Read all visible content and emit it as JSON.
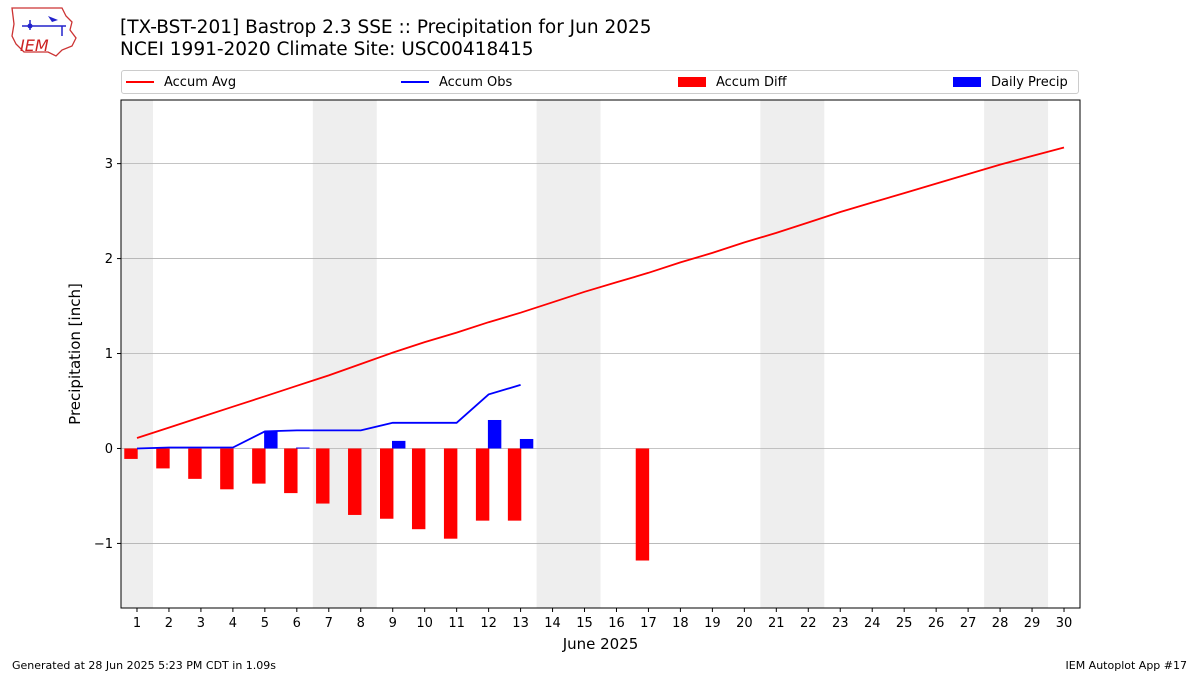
{
  "header": {
    "title_line1": "[TX-BST-201] Bastrop 2.3 SSE :: Precipitation for Jun 2025",
    "title_line2": "NCEI 1991-2020 Climate Site: USC00418415"
  },
  "logo": {
    "text": "IEM"
  },
  "footer": {
    "left": "Generated at 28 Jun 2025 5:23 PM CDT in 1.09s",
    "right": "IEM Autoplot App #17"
  },
  "colors": {
    "avg": "#ff0000",
    "obs": "#0000ff",
    "diff": "#ff0000",
    "daily": "#0000ff",
    "weekend": "#eeeeee",
    "grid": "#b0b0b0"
  },
  "chart_data": {
    "type": "bar",
    "xlabel": "June 2025",
    "ylabel": "Precipitation [inch]",
    "ylim": [
      -1.68,
      3.67
    ],
    "xlim": [
      0.5,
      30.5
    ],
    "yticks": [
      -1,
      0,
      1,
      2,
      3
    ],
    "ytick_labels": [
      "−1",
      "0",
      "1",
      "2",
      "3"
    ],
    "days": [
      1,
      2,
      3,
      4,
      5,
      6,
      7,
      8,
      9,
      10,
      11,
      12,
      13,
      14,
      15,
      16,
      17,
      18,
      19,
      20,
      21,
      22,
      23,
      24,
      25,
      26,
      27,
      28,
      29,
      30
    ],
    "grid": true,
    "weekend_shading": [
      [
        0.5,
        1.5
      ],
      [
        6.5,
        8.5
      ],
      [
        13.5,
        15.5
      ],
      [
        20.5,
        22.5
      ],
      [
        27.5,
        29.5
      ]
    ],
    "legend_placement": "top",
    "series": [
      {
        "name": "Accum Avg",
        "kind": "line",
        "x": [
          1,
          2,
          3,
          4,
          5,
          6,
          7,
          8,
          9,
          10,
          11,
          12,
          13,
          14,
          15,
          16,
          17,
          18,
          19,
          20,
          21,
          22,
          23,
          24,
          25,
          26,
          27,
          28,
          29,
          30
        ],
        "values": [
          0.11,
          0.22,
          0.33,
          0.44,
          0.55,
          0.66,
          0.77,
          0.89,
          1.01,
          1.12,
          1.22,
          1.33,
          1.43,
          1.54,
          1.65,
          1.75,
          1.85,
          1.96,
          2.06,
          2.17,
          2.27,
          2.38,
          2.49,
          2.59,
          2.69,
          2.79,
          2.89,
          2.99,
          3.08,
          3.17
        ]
      },
      {
        "name": "Accum Obs",
        "kind": "line",
        "x": [
          1,
          2,
          3,
          4,
          5,
          6,
          7,
          8,
          9,
          10,
          11,
          12,
          13
        ],
        "values": [
          0.0,
          0.01,
          0.01,
          0.01,
          0.18,
          0.19,
          0.19,
          0.19,
          0.27,
          0.27,
          0.27,
          0.57,
          0.67
        ]
      },
      {
        "name": "Accum Diff",
        "kind": "bar",
        "x": [
          1,
          2,
          3,
          4,
          5,
          6,
          7,
          8,
          9,
          10,
          11,
          12,
          13,
          17
        ],
        "values": [
          -0.11,
          -0.21,
          -0.32,
          -0.43,
          -0.37,
          -0.47,
          -0.58,
          -0.7,
          -0.74,
          -0.85,
          -0.95,
          -0.76,
          -0.76,
          -1.18
        ]
      },
      {
        "name": "Daily Precip",
        "kind": "bar",
        "x": [
          5,
          6,
          9,
          12,
          13
        ],
        "values": [
          0.18,
          0.01,
          0.08,
          0.3,
          0.1
        ]
      }
    ]
  }
}
